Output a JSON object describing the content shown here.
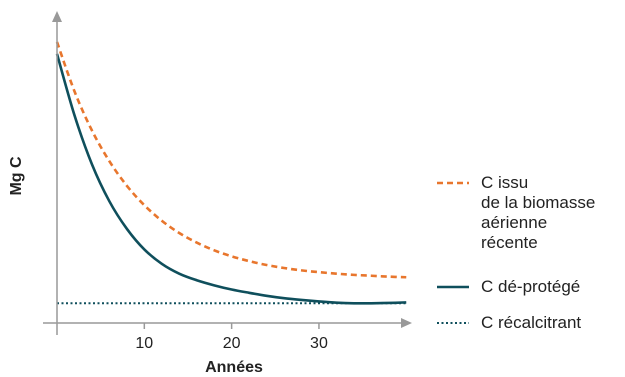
{
  "chart_data": {
    "type": "line",
    "xlabel": "Années",
    "ylabel": "Mg C",
    "xlim": [
      0,
      41
    ],
    "ylim": [
      0,
      100
    ],
    "xticks": [
      10,
      20,
      30
    ],
    "grid": false,
    "legend_position": "right",
    "colors": {
      "axis": "#999999",
      "text": "#222222"
    },
    "series": [
      {
        "name": "C issu de la biomasse aérienne récente",
        "name_lines": [
          "C issu",
          "de la biomasse",
          "aérienne",
          "récente"
        ],
        "color": "#e8762d",
        "style": "dashed",
        "x": [
          0,
          2,
          4,
          6,
          8,
          10,
          12,
          14,
          16,
          18,
          20,
          22,
          24,
          26,
          28,
          30,
          32,
          34,
          36,
          38,
          40
        ],
        "y": [
          94,
          77.5,
          64.4,
          54.1,
          45.9,
          39.4,
          34.2,
          30.1,
          26.9,
          24.3,
          22.3,
          20.7,
          19.4,
          18.4,
          17.6,
          17.0,
          16.5,
          16.1,
          15.8,
          15.5,
          15.3
        ]
      },
      {
        "name": "C dé-protégé",
        "color": "#0f4f5c",
        "style": "solid",
        "x": [
          0,
          2,
          4,
          6,
          8,
          10,
          12,
          14,
          16,
          18,
          20,
          22,
          24,
          26,
          28,
          30,
          32,
          34,
          36,
          38,
          40
        ],
        "y": [
          90,
          69.5,
          53.1,
          40.7,
          31.5,
          24.6,
          19.8,
          16.5,
          14.3,
          12.6,
          11.2,
          10.1,
          9.1,
          8.3,
          7.7,
          7.2,
          6.8,
          6.6,
          6.6,
          6.7,
          6.9
        ]
      },
      {
        "name": "C récalcitrant",
        "color": "#0f4f5c",
        "style": "dotted",
        "x": [
          0,
          40
        ],
        "y": [
          6.6,
          6.6
        ]
      }
    ]
  }
}
